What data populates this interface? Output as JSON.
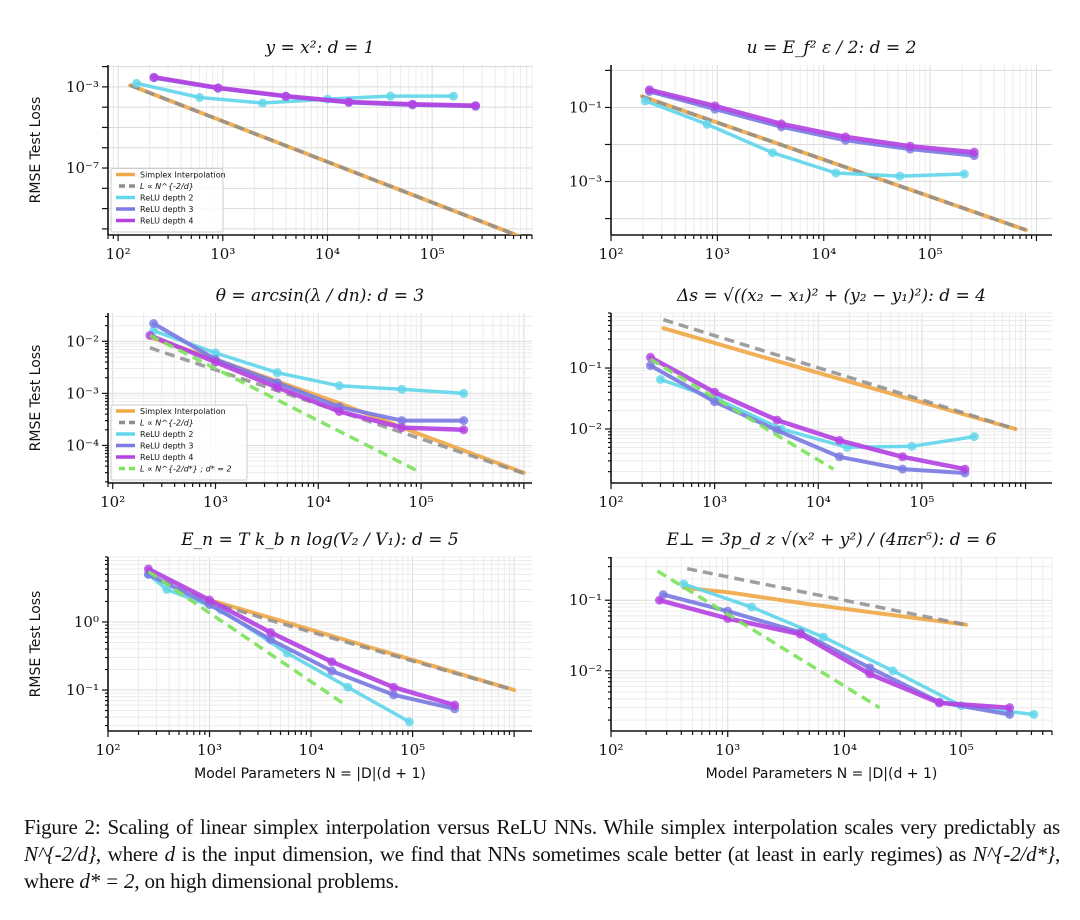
{
  "figure": {
    "caption_label": "Figure 2:",
    "caption_text_1": "Scaling of linear simplex interpolation versus ReLU NNs.  While simplex interpolation scales very predictably as ",
    "caption_math_1": "N^{-2/d}",
    "caption_text_2": ", where ",
    "caption_math_2": "d",
    "caption_text_3": " is the input dimension, we find that NNs sometimes scale better (at least in early regimes) as ",
    "caption_math_3": "N^{-2/d*}",
    "caption_text_4": ", where ",
    "caption_math_4": "d* = 2",
    "caption_text_5": ", on high dimensional problems."
  },
  "colors": {
    "simplex": "#f0a94a",
    "powerlaw_d": "#8e8e8e",
    "relu2": "#62d6ea",
    "relu3": "#7b7be2",
    "relu4": "#b443e2",
    "powerlaw_dstar": "#7ee35c"
  },
  "legend_labels": {
    "simplex": "Simplex Interpolation",
    "powerlaw_d": "L ∝ N^{-2/d}",
    "relu2": "ReLU depth 2",
    "relu3": "ReLU depth 3",
    "relu4": "ReLU depth 4",
    "powerlaw_dstar": "L ∝ N^{-2/d*} ; d* = 2"
  },
  "chart_data": [
    {
      "type": "line",
      "title": "y = x²:  d = 1",
      "xlabel": "",
      "ylabel": "RMSE Test Loss",
      "xscale": "log",
      "yscale": "log",
      "xlim": [
        80,
        900000
      ],
      "ylim": [
        5e-11,
        0.012
      ],
      "xticks": [
        {
          "v": 100,
          "label": "10²"
        },
        {
          "v": 1000,
          "label": "10³"
        },
        {
          "v": 10000,
          "label": "10⁴"
        },
        {
          "v": 100000,
          "label": "10⁵"
        }
      ],
      "yticks": [
        {
          "v": 0.001,
          "label": "10⁻³"
        },
        {
          "v": 1e-07,
          "label": "10⁻⁷"
        }
      ],
      "grid": true,
      "legend": "bottom-left",
      "legend_items": [
        "simplex",
        "powerlaw_d",
        "relu2",
        "relu3",
        "relu4"
      ],
      "series": [
        {
          "key": "simplex",
          "name": "Simplex Interpolation",
          "style": "solid",
          "x": [
            130,
            700000
          ],
          "y": [
            0.0012,
            4.1e-11
          ]
        },
        {
          "key": "powerlaw_d",
          "name": "L ∝ N^{-2/d}",
          "style": "dashed",
          "x": [
            130,
            700000
          ],
          "y": [
            0.0012,
            4.1e-11
          ]
        },
        {
          "key": "relu2",
          "name": "ReLU depth 2",
          "style": "solid",
          "markers": true,
          "x": [
            150,
            600,
            2400,
            10000,
            40000,
            160000
          ],
          "y": [
            0.0015,
            0.0003,
            0.00016,
            0.00025,
            0.00035,
            0.00035
          ]
        },
        {
          "key": "relu3",
          "name": "ReLU depth 3",
          "style": "solid",
          "markers": true,
          "x": [
            220,
            900,
            4000,
            16000,
            65000,
            260000
          ],
          "y": [
            0.0028,
            0.00085,
            0.00034,
            0.00017,
            0.00013,
            0.00011
          ]
        },
        {
          "key": "relu4",
          "name": "ReLU depth 4",
          "style": "solid",
          "markers": true,
          "x": [
            220,
            900,
            4000,
            16000,
            65000,
            260000
          ],
          "y": [
            0.003,
            0.0009,
            0.00035,
            0.00018,
            0.00014,
            0.00012
          ]
        }
      ]
    },
    {
      "type": "line",
      "title": "u = E_f² ε / 2:  d = 2",
      "xlabel": "",
      "ylabel": "",
      "xscale": "log",
      "yscale": "log",
      "xlim": [
        100,
        1400000
      ],
      "ylim": [
        3.6e-05,
        1.4
      ],
      "xticks": [
        {
          "v": 100,
          "label": "10²"
        },
        {
          "v": 1000,
          "label": "10³"
        },
        {
          "v": 10000,
          "label": "10⁴"
        },
        {
          "v": 100000,
          "label": "10⁵"
        }
      ],
      "yticks": [
        {
          "v": 0.1,
          "label": "10⁻¹"
        },
        {
          "v": 0.001,
          "label": "10⁻³"
        }
      ],
      "grid": true,
      "legend": "none",
      "legend_items": [],
      "series": [
        {
          "key": "simplex",
          "name": "Simplex Interpolation",
          "style": "solid",
          "x": [
            195,
            800000
          ],
          "y": [
            0.2,
            4.9e-05
          ]
        },
        {
          "key": "powerlaw_d",
          "name": "L ∝ N^{-2/d}",
          "style": "dashed",
          "x": [
            195,
            800000
          ],
          "y": [
            0.2,
            4.9e-05
          ]
        },
        {
          "key": "relu2",
          "name": "ReLU depth 2",
          "style": "solid",
          "markers": true,
          "x": [
            210,
            800,
            3300,
            13000,
            52000,
            210000
          ],
          "y": [
            0.15,
            0.035,
            0.006,
            0.0017,
            0.0014,
            0.0016
          ]
        },
        {
          "key": "relu3",
          "name": "ReLU depth 3",
          "style": "solid",
          "markers": true,
          "x": [
            230,
            950,
            4000,
            16000,
            65000,
            260000
          ],
          "y": [
            0.27,
            0.09,
            0.03,
            0.013,
            0.0075,
            0.005
          ]
        },
        {
          "key": "relu4",
          "name": "ReLU depth 4",
          "style": "solid",
          "markers": true,
          "x": [
            230,
            950,
            4000,
            16000,
            65000,
            260000
          ],
          "y": [
            0.3,
            0.11,
            0.036,
            0.016,
            0.009,
            0.0062
          ]
        }
      ]
    },
    {
      "type": "line",
      "title": "θ = arcsin(λ / dn):  d = 3",
      "xlabel": "",
      "ylabel": "RMSE Test Loss",
      "xscale": "log",
      "yscale": "log",
      "xlim": [
        90,
        1200000
      ],
      "ylim": [
        1.9e-05,
        0.035
      ],
      "xticks": [
        {
          "v": 100,
          "label": "10²"
        },
        {
          "v": 1000,
          "label": "10³"
        },
        {
          "v": 10000,
          "label": "10⁴"
        },
        {
          "v": 100000,
          "label": "10⁵"
        }
      ],
      "yticks": [
        {
          "v": 0.01,
          "label": "10⁻²"
        },
        {
          "v": 0.001,
          "label": "10⁻³"
        },
        {
          "v": 0.0001,
          "label": "10⁻⁴"
        }
      ],
      "grid": true,
      "legend": "bottom-left",
      "legend_items": [
        "simplex",
        "powerlaw_d",
        "relu2",
        "relu3",
        "relu4",
        "powerlaw_dstar"
      ],
      "series": [
        {
          "key": "simplex",
          "name": "Simplex Interpolation",
          "style": "solid",
          "x": [
            230,
            1000,
            4000,
            16000,
            100000,
            1000000
          ],
          "y": [
            0.012,
            0.0045,
            0.0017,
            0.00065,
            0.00016,
            3e-05
          ]
        },
        {
          "key": "powerlaw_d",
          "name": "L ∝ N^{-2/d}",
          "style": "dashed",
          "x": [
            230,
            1000000
          ],
          "y": [
            0.0075,
            2.9e-05
          ]
        },
        {
          "key": "relu2",
          "name": "ReLU depth 2",
          "style": "solid",
          "markers": true,
          "x": [
            250,
            1000,
            4000,
            16000,
            65000,
            260000
          ],
          "y": [
            0.016,
            0.006,
            0.0025,
            0.0014,
            0.0012,
            0.001
          ]
        },
        {
          "key": "relu3",
          "name": "ReLU depth 3",
          "style": "solid",
          "markers": true,
          "x": [
            250,
            1000,
            4000,
            16000,
            65000,
            260000
          ],
          "y": [
            0.022,
            0.0045,
            0.0016,
            0.00055,
            0.0003,
            0.0003
          ]
        },
        {
          "key": "relu4",
          "name": "ReLU depth 4",
          "style": "solid",
          "markers": true,
          "x": [
            230,
            1000,
            4000,
            16000,
            65000,
            260000
          ],
          "y": [
            0.013,
            0.004,
            0.0013,
            0.00045,
            0.00022,
            0.0002
          ]
        },
        {
          "key": "powerlaw_dstar",
          "name": "L ∝ N^{-2/d*} ; d* = 2",
          "style": "dashed",
          "x": [
            230,
            100000
          ],
          "y": [
            0.013,
            3e-05
          ]
        }
      ]
    },
    {
      "type": "line",
      "title": "Δs = √((x₂ − x₁)² + (y₂ − y₁)²):  d = 4",
      "xlabel": "",
      "ylabel": "",
      "xscale": "log",
      "yscale": "log",
      "xlim": [
        100,
        1800000
      ],
      "ylim": [
        0.0013,
        0.8
      ],
      "xticks": [
        {
          "v": 100,
          "label": "10²"
        },
        {
          "v": 1000,
          "label": "10³"
        },
        {
          "v": 10000,
          "label": "10⁴"
        },
        {
          "v": 100000,
          "label": "10⁵"
        }
      ],
      "yticks": [
        {
          "v": 0.1,
          "label": "10⁻¹"
        },
        {
          "v": 0.01,
          "label": "10⁻²"
        }
      ],
      "grid": true,
      "legend": "none",
      "legend_items": [],
      "series": [
        {
          "key": "simplex",
          "name": "Simplex Interpolation",
          "style": "solid",
          "x": [
            320,
            4000,
            800000
          ],
          "y": [
            0.45,
            0.13,
            0.01
          ]
        },
        {
          "key": "powerlaw_d",
          "name": "L ∝ N^{-2/d}",
          "style": "dashed",
          "x": [
            320,
            800000
          ],
          "y": [
            0.62,
            0.01
          ]
        },
        {
          "key": "relu2",
          "name": "ReLU depth 2",
          "style": "solid",
          "markers": true,
          "x": [
            300,
            1100,
            4400,
            19000,
            80000,
            320000
          ],
          "y": [
            0.065,
            0.03,
            0.01,
            0.005,
            0.0052,
            0.0075
          ]
        },
        {
          "key": "relu3",
          "name": "ReLU depth 3",
          "style": "solid",
          "markers": true,
          "x": [
            240,
            1000,
            4000,
            16000,
            65000,
            260000
          ],
          "y": [
            0.11,
            0.028,
            0.0095,
            0.0035,
            0.0022,
            0.0019
          ]
        },
        {
          "key": "relu4",
          "name": "ReLU depth 4",
          "style": "solid",
          "markers": true,
          "x": [
            240,
            1000,
            4000,
            16000,
            65000,
            260000
          ],
          "y": [
            0.15,
            0.04,
            0.014,
            0.0065,
            0.0035,
            0.0022
          ]
        },
        {
          "key": "powerlaw_dstar",
          "name": "L ∝ N^{-2/d*} ; d* = 2",
          "style": "dashed",
          "x": [
            240,
            14000
          ],
          "y": [
            0.14,
            0.0022
          ]
        }
      ]
    },
    {
      "type": "line",
      "title": "E_n = T k_b n log(V₂ / V₁):  d = 5",
      "xlabel": "Model Parameters N = |D|(d + 1)",
      "ylabel": "RMSE Test Loss",
      "xscale": "log",
      "yscale": "log",
      "xlim": [
        100,
        1500000
      ],
      "ylim": [
        0.025,
        9
      ],
      "xticks": [
        {
          "v": 100,
          "label": "10²"
        },
        {
          "v": 1000,
          "label": "10³"
        },
        {
          "v": 10000,
          "label": "10⁴"
        },
        {
          "v": 100000,
          "label": "10⁵"
        }
      ],
      "yticks": [
        {
          "v": 1,
          "label": "10⁰"
        },
        {
          "v": 0.1,
          "label": "10⁻¹"
        }
      ],
      "grid": true,
      "legend": "none",
      "legend_items": [],
      "series": [
        {
          "key": "simplex",
          "name": "Simplex Interpolation",
          "style": "solid",
          "x": [
            1000,
            4000,
            1000000
          ],
          "y": [
            2.1,
            1.15,
            0.1
          ]
        },
        {
          "key": "powerlaw_d",
          "name": "L ∝ N^{-2/d}",
          "style": "dashed",
          "x": [
            250,
            1000,
            4000,
            1000000
          ],
          "y": [
            5,
            2.0,
            1.05,
            0.1
          ]
        },
        {
          "key": "relu2",
          "name": "ReLU depth 2",
          "style": "solid",
          "markers": true,
          "x": [
            250,
            380,
            1300,
            5800,
            23000,
            93000
          ],
          "y": [
            5,
            3,
            1.5,
            0.35,
            0.11,
            0.034
          ]
        },
        {
          "key": "relu3",
          "name": "ReLU depth 3",
          "style": "solid",
          "markers": true,
          "x": [
            250,
            1000,
            4000,
            16000,
            65000,
            260000
          ],
          "y": [
            5,
            1.8,
            0.55,
            0.19,
            0.085,
            0.053
          ]
        },
        {
          "key": "relu4",
          "name": "ReLU depth 4",
          "style": "solid",
          "markers": true,
          "x": [
            250,
            1000,
            4000,
            16000,
            65000,
            260000
          ],
          "y": [
            6,
            2.1,
            0.7,
            0.26,
            0.11,
            0.06
          ]
        },
        {
          "key": "powerlaw_dstar",
          "name": "L ∝ N^{-2/d*} ; d* = 2",
          "style": "dashed",
          "x": [
            250,
            22000
          ],
          "y": [
            5.5,
            0.06
          ]
        }
      ]
    },
    {
      "type": "line",
      "title": "E⊥ = 3p_d z √(x² + y²) / (4πεr⁵):  d = 6",
      "xlabel": "Model Parameters N = |D|(d + 1)",
      "ylabel": "",
      "xscale": "log",
      "yscale": "log",
      "xlim": [
        100,
        600000
      ],
      "ylim": [
        0.0014,
        0.41
      ],
      "xticks": [
        {
          "v": 100,
          "label": "10²"
        },
        {
          "v": 1000,
          "label": "10³"
        },
        {
          "v": 10000,
          "label": "10⁴"
        },
        {
          "v": 100000,
          "label": "10⁵"
        }
      ],
      "yticks": [
        {
          "v": 0.1,
          "label": "10⁻¹"
        },
        {
          "v": 0.01,
          "label": "10⁻²"
        }
      ],
      "grid": true,
      "legend": "none",
      "legend_items": [],
      "series": [
        {
          "key": "simplex",
          "name": "Simplex Interpolation",
          "style": "solid",
          "x": [
            420,
            1000,
            4500,
            110000
          ],
          "y": [
            0.15,
            0.13,
            0.09,
            0.045
          ]
        },
        {
          "key": "powerlaw_d",
          "name": "L ∝ N^{-2/d}",
          "style": "dashed",
          "x": [
            450,
            110000
          ],
          "y": [
            0.28,
            0.045
          ]
        },
        {
          "key": "relu2",
          "name": "ReLU depth 2",
          "style": "solid",
          "markers": true,
          "x": [
            420,
            1600,
            6600,
            26000,
            100000,
            420000
          ],
          "y": [
            0.17,
            0.08,
            0.03,
            0.01,
            0.0032,
            0.0024
          ]
        },
        {
          "key": "relu3",
          "name": "ReLU depth 3",
          "style": "solid",
          "markers": true,
          "x": [
            280,
            1000,
            4200,
            16500,
            65000,
            260000
          ],
          "y": [
            0.12,
            0.07,
            0.035,
            0.011,
            0.0036,
            0.0024
          ]
        },
        {
          "key": "relu4",
          "name": "ReLU depth 4",
          "style": "solid",
          "markers": true,
          "x": [
            260,
            1000,
            4200,
            16500,
            65000,
            260000
          ],
          "y": [
            0.1,
            0.055,
            0.033,
            0.009,
            0.0035,
            0.003
          ]
        },
        {
          "key": "powerlaw_dstar",
          "name": "L ∝ N^{-2/d*} ; d* = 2",
          "style": "dashed",
          "x": [
            250,
            20000
          ],
          "y": [
            0.26,
            0.003
          ]
        }
      ]
    }
  ]
}
